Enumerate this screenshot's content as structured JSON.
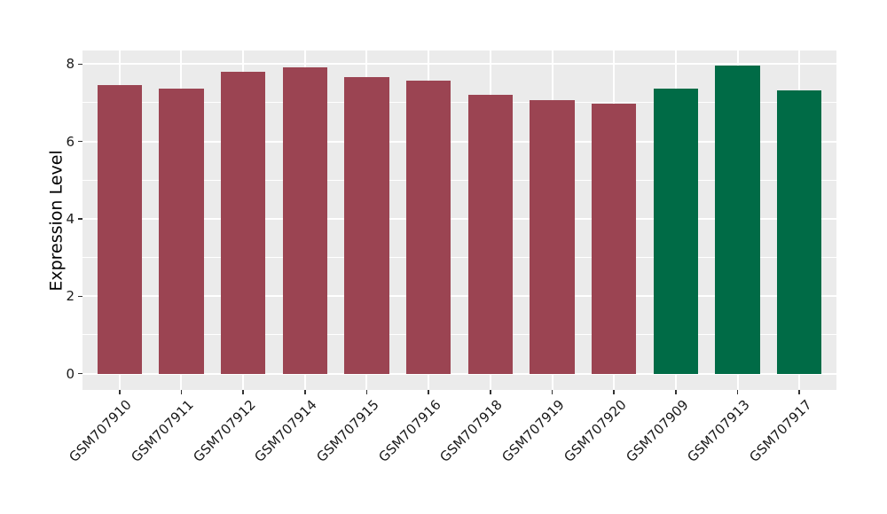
{
  "chart_data": {
    "type": "bar",
    "title": "",
    "xlabel": "",
    "ylabel": "Expression Level",
    "categories": [
      "GSM707910",
      "GSM707911",
      "GSM707912",
      "GSM707914",
      "GSM707915",
      "GSM707916",
      "GSM707918",
      "GSM707919",
      "GSM707920",
      "GSM707909",
      "GSM707913",
      "GSM707917"
    ],
    "values": [
      7.45,
      7.37,
      7.8,
      7.91,
      7.66,
      7.57,
      7.21,
      7.06,
      6.98,
      7.36,
      7.95,
      7.31
    ],
    "bar_colors": [
      "#9B4452",
      "#9B4452",
      "#9B4452",
      "#9B4452",
      "#9B4452",
      "#9B4452",
      "#9B4452",
      "#9B4452",
      "#9B4452",
      "#006B46",
      "#006B46",
      "#006B46"
    ],
    "groups": [
      {
        "color": "#9B4452",
        "categories": [
          "GSM707910",
          "GSM707911",
          "GSM707912",
          "GSM707914",
          "GSM707915",
          "GSM707916",
          "GSM707918",
          "GSM707919",
          "GSM707920"
        ]
      },
      {
        "color": "#006B46",
        "categories": [
          "GSM707909",
          "GSM707913",
          "GSM707917"
        ]
      }
    ],
    "yticks": [
      0,
      2,
      4,
      6,
      8
    ],
    "minor_yticks": [
      1,
      3,
      5,
      7
    ],
    "ylim": [
      -0.42,
      8.35
    ],
    "grid": true,
    "legend": "none",
    "panel_bg": "#EBEBEB",
    "grid_color": "#FFFFFF",
    "tick_color": "#333333",
    "text_color": "#1A1A1A"
  }
}
